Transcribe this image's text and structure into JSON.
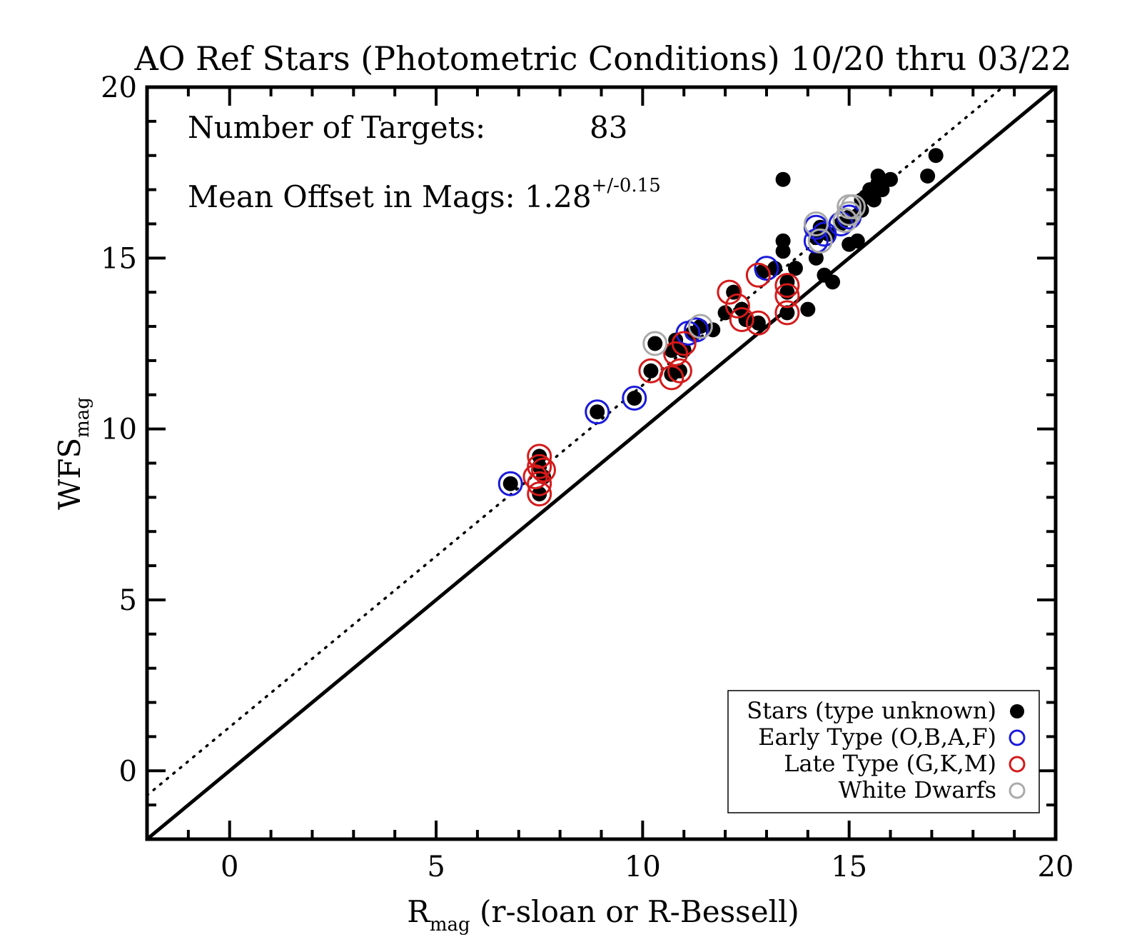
{
  "chart_data": {
    "type": "scatter",
    "title": "AO Ref Stars (Photometric Conditions) 10/20 thru 03/22",
    "xlabel": {
      "main": "R",
      "sub": "mag",
      "rest": " (r-sloan or R-Bessell)"
    },
    "ylabel": {
      "main": "WFS",
      "sub": "mag"
    },
    "xlim": [
      -2,
      20
    ],
    "ylim": [
      -2,
      20
    ],
    "xticks": [
      0,
      5,
      10,
      15,
      20
    ],
    "yticks": [
      0,
      5,
      10,
      15,
      20
    ],
    "annotations": {
      "targets_label": "Number of Targets:",
      "targets_value": "83",
      "offset_label": "Mean Offset in Mags: 1.28",
      "offset_sup": "+/-0.15"
    },
    "lines": [
      {
        "style": "solid",
        "slope": 1,
        "intercept": 0
      },
      {
        "style": "dotted",
        "slope": 1,
        "intercept": 1.28,
        "xmax": 19.2
      }
    ],
    "legend": {
      "position": "bottom-right",
      "entries": [
        {
          "label": "Stars (type unknown)",
          "marker": "filled-circle",
          "color": "#000000"
        },
        {
          "label": "Early Type (O,B,A,F)",
          "marker": "open-circle",
          "color": "#1a1adb"
        },
        {
          "label": "Late Type (G,K,M)",
          "marker": "open-circle",
          "color": "#d41a1a"
        },
        {
          "label": "White Dwarfs",
          "marker": "open-circle",
          "color": "#aaaaaa"
        }
      ]
    },
    "series": [
      {
        "name": "Stars (type unknown)",
        "marker": "filled-circle",
        "color": "#000000",
        "points": [
          [
            6.8,
            8.4
          ],
          [
            7.5,
            8.1
          ],
          [
            7.5,
            9.2
          ],
          [
            7.5,
            8.9
          ],
          [
            7.6,
            8.6
          ],
          [
            8.9,
            10.5
          ],
          [
            9.8,
            10.9
          ],
          [
            10.2,
            11.7
          ],
          [
            10.3,
            12.5
          ],
          [
            10.7,
            11.6
          ],
          [
            10.7,
            12.3
          ],
          [
            10.8,
            12.6
          ],
          [
            10.9,
            11.7
          ],
          [
            11.0,
            12.3
          ],
          [
            11.2,
            12.8
          ],
          [
            11.4,
            13.0
          ],
          [
            11.7,
            12.9
          ],
          [
            12.0,
            13.4
          ],
          [
            12.2,
            14.0
          ],
          [
            12.4,
            13.5
          ],
          [
            12.5,
            13.2
          ],
          [
            12.8,
            13.1
          ],
          [
            12.9,
            14.6
          ],
          [
            13.2,
            14.7
          ],
          [
            13.4,
            17.3
          ],
          [
            13.4,
            15.5
          ],
          [
            13.4,
            15.2
          ],
          [
            13.5,
            14.3
          ],
          [
            13.5,
            14.0
          ],
          [
            13.5,
            13.4
          ],
          [
            13.7,
            14.7
          ],
          [
            14.0,
            13.5
          ],
          [
            14.2,
            15.0
          ],
          [
            14.2,
            15.6
          ],
          [
            14.3,
            15.9
          ],
          [
            14.4,
            14.5
          ],
          [
            14.6,
            14.3
          ],
          [
            14.5,
            15.7
          ],
          [
            14.8,
            16.0
          ],
          [
            15.0,
            15.4
          ],
          [
            15.0,
            16.2
          ],
          [
            15.2,
            15.5
          ],
          [
            15.3,
            16.4
          ],
          [
            15.3,
            16.7
          ],
          [
            15.4,
            16.8
          ],
          [
            15.5,
            17.0
          ],
          [
            15.6,
            16.7
          ],
          [
            15.7,
            17.2
          ],
          [
            15.8,
            17.0
          ],
          [
            15.7,
            17.4
          ],
          [
            16.0,
            17.3
          ],
          [
            16.9,
            17.4
          ],
          [
            17.1,
            18.0
          ]
        ]
      },
      {
        "name": "Early Type (O,B,A,F)",
        "marker": "open-circle",
        "color": "#1a1adb",
        "points": [
          [
            6.8,
            8.4
          ],
          [
            8.9,
            10.5
          ],
          [
            9.8,
            10.9
          ],
          [
            11.1,
            12.8
          ],
          [
            11.3,
            12.9
          ],
          [
            13.0,
            14.7
          ],
          [
            14.2,
            15.5
          ],
          [
            14.2,
            15.9
          ],
          [
            14.4,
            15.7
          ],
          [
            14.8,
            16.0
          ],
          [
            15.0,
            16.2
          ]
        ]
      },
      {
        "name": "Late Type (G,K,M)",
        "marker": "open-circle",
        "color": "#d41a1a",
        "points": [
          [
            7.5,
            8.1
          ],
          [
            7.5,
            9.2
          ],
          [
            7.5,
            8.9
          ],
          [
            7.4,
            8.6
          ],
          [
            7.6,
            8.8
          ],
          [
            7.5,
            8.4
          ],
          [
            10.2,
            11.7
          ],
          [
            10.7,
            11.5
          ],
          [
            10.8,
            12.2
          ],
          [
            10.9,
            11.7
          ],
          [
            11.0,
            12.5
          ],
          [
            12.1,
            14.0
          ],
          [
            12.3,
            13.6
          ],
          [
            12.4,
            13.2
          ],
          [
            12.8,
            13.1
          ],
          [
            12.8,
            14.5
          ],
          [
            13.5,
            14.2
          ],
          [
            13.5,
            13.9
          ],
          [
            13.5,
            13.4
          ]
        ]
      },
      {
        "name": "White Dwarfs",
        "marker": "open-circle",
        "color": "#aaaaaa",
        "points": [
          [
            10.3,
            12.5
          ],
          [
            11.4,
            13.0
          ],
          [
            14.2,
            16.0
          ],
          [
            14.3,
            15.5
          ],
          [
            14.9,
            16.1
          ],
          [
            15.0,
            16.3
          ],
          [
            15.0,
            16.5
          ],
          [
            15.1,
            16.5
          ]
        ]
      }
    ]
  }
}
